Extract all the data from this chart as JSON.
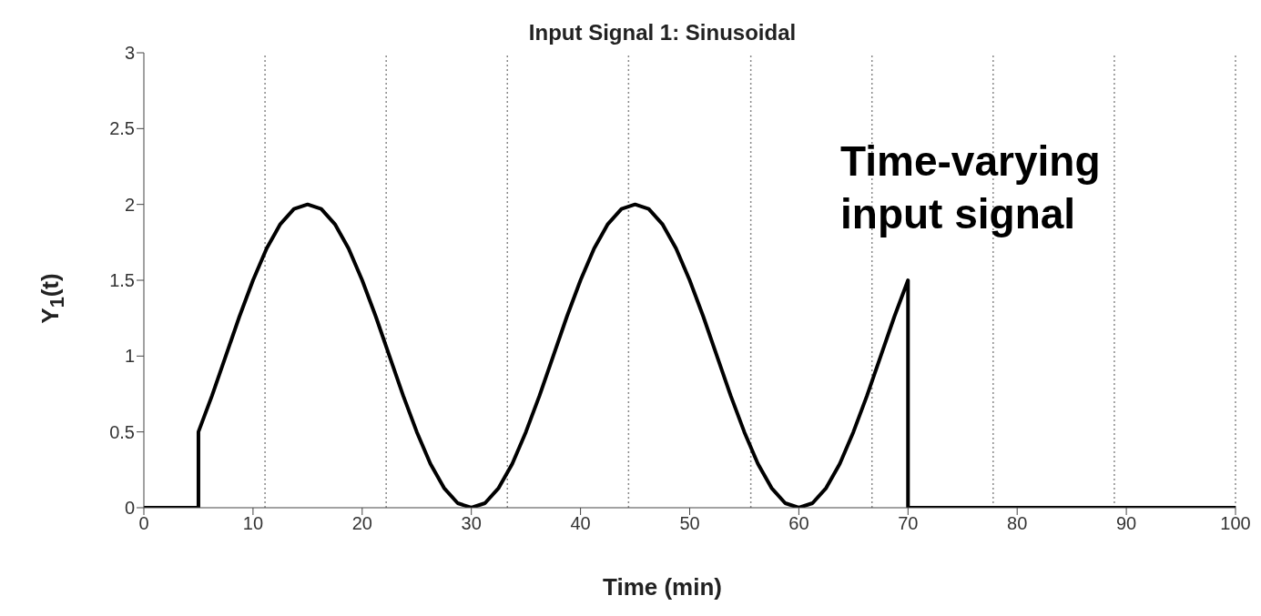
{
  "chart_data": {
    "type": "line",
    "title": "Input Signal 1: Sinusoidal",
    "xlabel": "Time (min)",
    "ylabel": "Y$_{1}$(t)",
    "annotations": [
      "Time-varying input signal"
    ],
    "series": [
      {
        "color": "#000000",
        "x": [
          0,
          5,
          5,
          6.25,
          7.5,
          8.75,
          10,
          11.25,
          12.5,
          13.75,
          15,
          16.25,
          17.5,
          18.75,
          20,
          21.25,
          22.5,
          23.75,
          25,
          26.25,
          27.5,
          28.75,
          30,
          31.25,
          32.5,
          33.75,
          35,
          36.25,
          37.5,
          38.75,
          40,
          41.25,
          42.5,
          43.75,
          45,
          46.25,
          47.5,
          48.75,
          50,
          51.25,
          52.5,
          53.75,
          55,
          56.25,
          57.5,
          58.75,
          60,
          61.25,
          62.5,
          63.75,
          65,
          66.25,
          67.5,
          68.75,
          70,
          70,
          100
        ],
        "values": [
          0,
          0,
          0.5,
          0.74,
          1,
          1.26,
          1.5,
          1.71,
          1.87,
          1.97,
          2,
          1.97,
          1.87,
          1.71,
          1.5,
          1.26,
          1,
          0.74,
          0.5,
          0.29,
          0.13,
          0.03,
          0,
          0.03,
          0.13,
          0.29,
          0.5,
          0.74,
          1,
          1.26,
          1.5,
          1.71,
          1.87,
          1.97,
          2,
          1.97,
          1.87,
          1.71,
          1.5,
          1.26,
          1,
          0.74,
          0.5,
          0.29,
          0.13,
          0.03,
          0,
          0.03,
          0.13,
          0.29,
          0.5,
          0.74,
          1,
          1.26,
          1.5,
          0,
          0
        ]
      }
    ],
    "xlim": [
      0,
      100
    ],
    "xticks": [
      0,
      10,
      20,
      30,
      40,
      50,
      60,
      70,
      80,
      90,
      100
    ],
    "ylim": [
      0,
      3
    ],
    "yticks": [
      0,
      0.5,
      1,
      1.5,
      2,
      2.5,
      3
    ],
    "grid": false,
    "legend": false,
    "marker": "none",
    "line_style": "solid",
    "ref_lines": [
      {
        "axis": "x",
        "value": 11.1,
        "line_style": "dotted",
        "color": "#888888"
      },
      {
        "axis": "x",
        "value": 22.2,
        "line_style": "dotted",
        "color": "#888888"
      },
      {
        "axis": "x",
        "value": 33.3,
        "line_style": "dotted",
        "color": "#888888"
      },
      {
        "axis": "x",
        "value": 44.4,
        "line_style": "dotted",
        "color": "#888888"
      },
      {
        "axis": "x",
        "value": 55.6,
        "line_style": "dotted",
        "color": "#888888"
      },
      {
        "axis": "x",
        "value": 66.7,
        "line_style": "dotted",
        "color": "#888888"
      },
      {
        "axis": "x",
        "value": 77.8,
        "line_style": "dotted",
        "color": "#888888"
      },
      {
        "axis": "x",
        "value": 88.9,
        "line_style": "dotted",
        "color": "#888888"
      },
      {
        "axis": "x",
        "value": 100,
        "line_style": "dotted",
        "color": "#888888"
      }
    ]
  }
}
